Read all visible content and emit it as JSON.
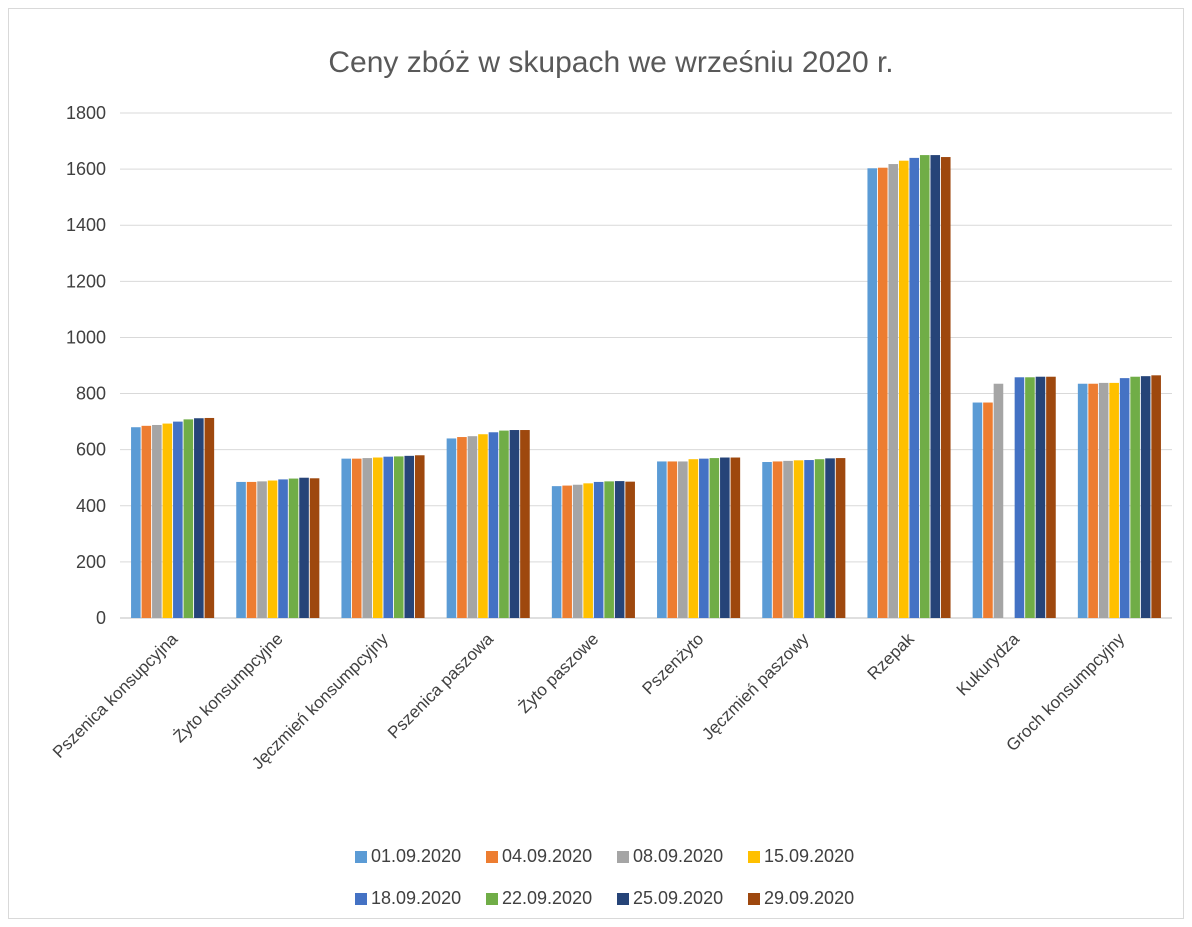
{
  "chart_data": {
    "type": "bar",
    "title": "Ceny zbóż w skupach we wrześniu 2020 r.",
    "xlabel": "",
    "ylabel": "",
    "ylim": [
      0,
      1800
    ],
    "yticks": [
      0,
      200,
      400,
      600,
      800,
      1000,
      1200,
      1400,
      1600,
      1800
    ],
    "grid": true,
    "legend": "bottom",
    "categories": [
      "Pszenica konsupcyjna",
      "Żyto konsumpcyjne",
      "Jęczmień konsumpcyjny",
      "Pszenica paszowa",
      "Żyto paszowe",
      "Pszenżyto",
      "Jęczmień paszowy",
      "Rzepak",
      "Kukurydza",
      "Groch konsumpcyjny"
    ],
    "series": [
      {
        "name": "01.09.2020",
        "color": "#5b9bd5",
        "values": [
          680,
          485,
          568,
          640,
          470,
          558,
          556,
          1603,
          768,
          835
        ]
      },
      {
        "name": "04.09.2020",
        "color": "#ed7d31",
        "values": [
          685,
          485,
          568,
          645,
          472,
          558,
          558,
          1605,
          768,
          835
        ]
      },
      {
        "name": "08.09.2020",
        "color": "#a5a5a5",
        "values": [
          688,
          487,
          570,
          648,
          475,
          558,
          560,
          1618,
          835,
          838
        ]
      },
      {
        "name": "15.09.2020",
        "color": "#ffc000",
        "values": [
          693,
          490,
          572,
          655,
          480,
          566,
          562,
          1630,
          null,
          838
        ]
      },
      {
        "name": "18.09.2020",
        "color": "#4472c4",
        "values": [
          700,
          494,
          575,
          662,
          485,
          568,
          563,
          1640,
          858,
          855
        ]
      },
      {
        "name": "22.09.2020",
        "color": "#70ad47",
        "values": [
          708,
          497,
          576,
          668,
          487,
          570,
          566,
          1650,
          858,
          860
        ]
      },
      {
        "name": "25.09.2020",
        "color": "#264478",
        "values": [
          712,
          500,
          578,
          670,
          488,
          572,
          569,
          1650,
          860,
          862
        ]
      },
      {
        "name": "29.09.2020",
        "color": "#9e480e",
        "values": [
          713,
          498,
          580,
          670,
          486,
          572,
          570,
          1643,
          860,
          865
        ]
      }
    ]
  }
}
